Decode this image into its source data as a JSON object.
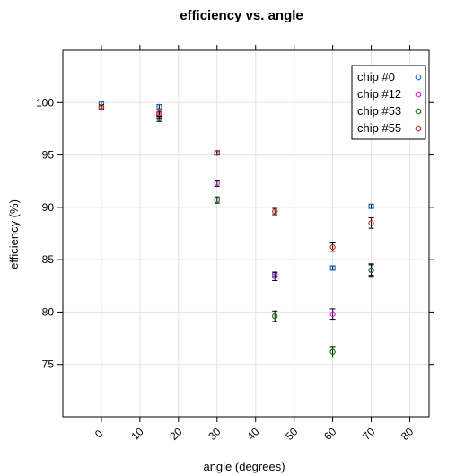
{
  "chart_data": {
    "type": "scatter",
    "title": "efficiency vs. angle",
    "xlabel": "angle (degrees)",
    "ylabel": "efficiency (%)",
    "xlim": [
      -10,
      85
    ],
    "ylim": [
      70,
      105
    ],
    "x_ticks": [
      0,
      10,
      20,
      30,
      40,
      50,
      60,
      70,
      80
    ],
    "y_ticks": [
      75,
      80,
      85,
      90,
      95,
      100
    ],
    "grid": true,
    "legend_position": "top-right",
    "series": [
      {
        "name": "chip #0",
        "color": "#1f77d4",
        "points": [
          {
            "x": 0,
            "y": 99.9,
            "err": 0.2
          },
          {
            "x": 15,
            "y": 99.6,
            "err": 0.2
          },
          {
            "x": 30,
            "y": 95.2,
            "err": 0.2
          },
          {
            "x": 45,
            "y": 83.6,
            "err": 0.2
          },
          {
            "x": 60,
            "y": 84.2,
            "err": 0.2
          },
          {
            "x": 70,
            "y": 90.1,
            "err": 0.2
          }
        ]
      },
      {
        "name": "chip #12",
        "color": "#e020e0",
        "points": [
          {
            "x": 0,
            "y": 99.6,
            "err": 0.2
          },
          {
            "x": 15,
            "y": 98.8,
            "err": 0.3
          },
          {
            "x": 30,
            "y": 92.3,
            "err": 0.3
          },
          {
            "x": 45,
            "y": 83.4,
            "err": 0.4
          },
          {
            "x": 60,
            "y": 79.8,
            "err": 0.5
          },
          {
            "x": 70,
            "y": 84.0,
            "err": 0.6
          }
        ]
      },
      {
        "name": "chip #53",
        "color": "#1a7a1a",
        "points": [
          {
            "x": 0,
            "y": 99.5,
            "err": 0.2
          },
          {
            "x": 15,
            "y": 98.5,
            "err": 0.3
          },
          {
            "x": 30,
            "y": 90.7,
            "err": 0.3
          },
          {
            "x": 45,
            "y": 79.6,
            "err": 0.5
          },
          {
            "x": 60,
            "y": 76.2,
            "err": 0.5
          },
          {
            "x": 70,
            "y": 84.0,
            "err": 0.5
          }
        ]
      },
      {
        "name": "chip #55",
        "color": "#d43030",
        "points": [
          {
            "x": 0,
            "y": 99.6,
            "err": 0.2
          },
          {
            "x": 15,
            "y": 99.0,
            "err": 0.3
          },
          {
            "x": 30,
            "y": 95.2,
            "err": 0.2
          },
          {
            "x": 45,
            "y": 89.6,
            "err": 0.3
          },
          {
            "x": 60,
            "y": 86.2,
            "err": 0.4
          },
          {
            "x": 70,
            "y": 88.5,
            "err": 0.5
          }
        ]
      }
    ]
  }
}
